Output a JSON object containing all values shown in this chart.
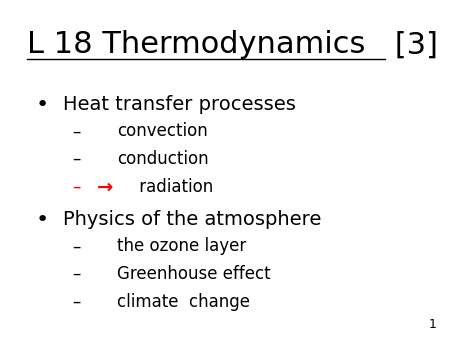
{
  "title_part1": "L 18 Thermodynamics",
  "title_part2": " [3]",
  "background_color": "#ffffff",
  "text_color": "#000000",
  "red_color": "#ff0000",
  "slide_number": "1",
  "bullet1": "Heat transfer processes",
  "sub1a": "convection",
  "sub1b": "conduction",
  "bullet2": "Physics of the atmosphere",
  "sub2a": "the ozone layer",
  "sub2b": "Greenhouse effect",
  "sub2c": "climate  change",
  "title_fontsize": 22,
  "bullet_fontsize": 14,
  "sub_fontsize": 12,
  "number_fontsize": 9,
  "dash": "–",
  "arrow": "→",
  "bullet_char": "•"
}
